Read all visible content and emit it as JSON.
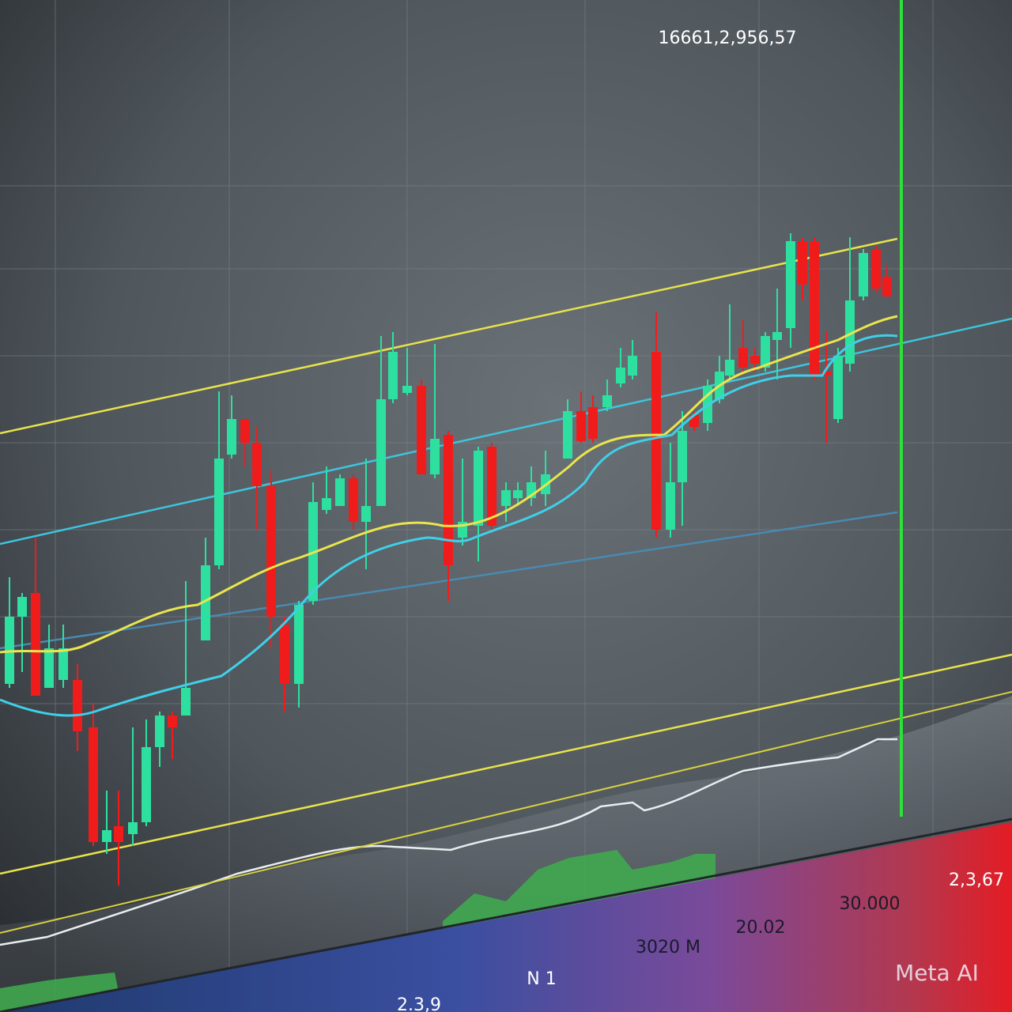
{
  "header": {
    "value": "16661,2,956,57"
  },
  "axis_labels": [
    "2,3,67",
    "30.000",
    "20.02",
    "3020 M",
    "N 1",
    "2.3,9"
  ],
  "watermark": "Meta AI"
}
